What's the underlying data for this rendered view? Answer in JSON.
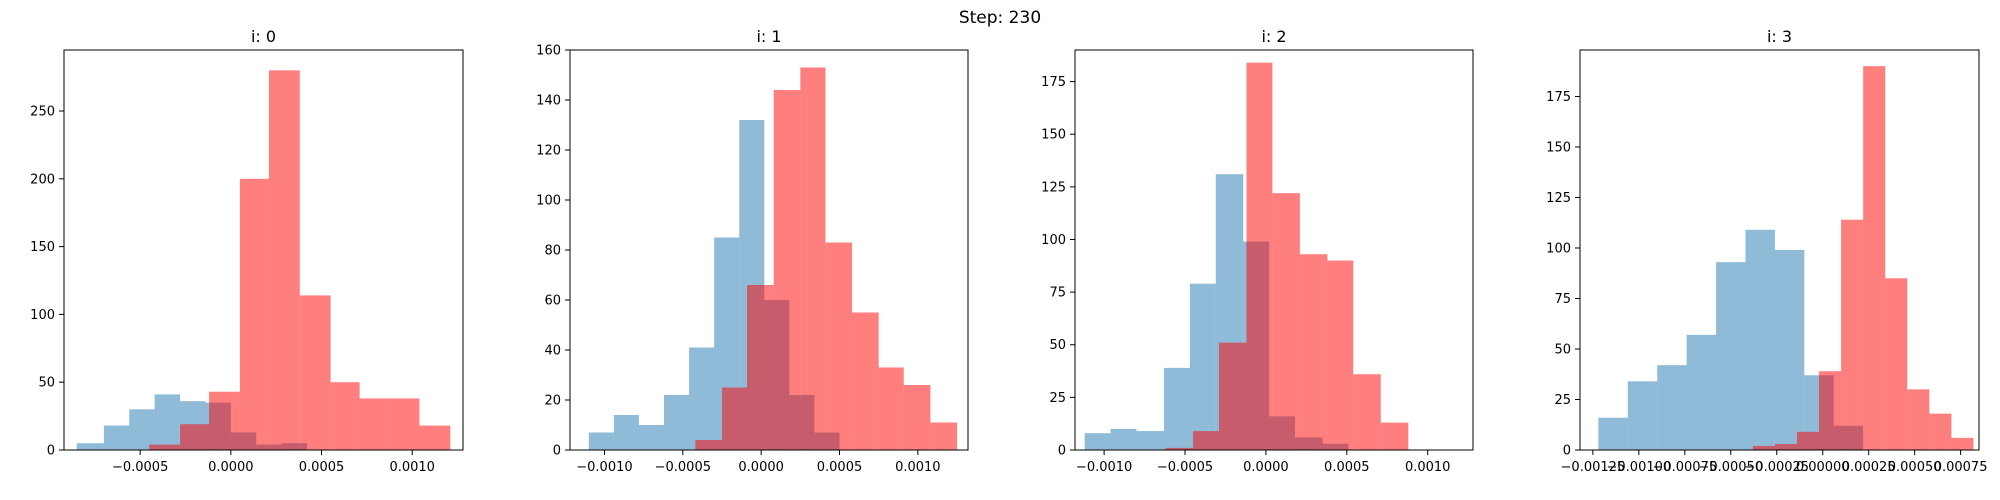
{
  "figure": {
    "suptitle": "Step: 230"
  },
  "chart_data": [
    {
      "type": "histogram",
      "title": "i: 0",
      "xlim": [
        -0.00092,
        0.00128
      ],
      "ylim": [
        0,
        295
      ],
      "xticks": [
        -0.0005,
        0.0,
        0.0005,
        0.001
      ],
      "xtick_labels": [
        "−0.0005",
        "0.0000",
        "0.0005",
        "0.0010"
      ],
      "yticks": [
        0,
        50,
        100,
        150,
        200,
        250
      ],
      "ytick_labels": [
        "0",
        "50",
        "100",
        "150",
        "200",
        "250"
      ],
      "series": [
        {
          "color": "#1f77b4",
          "alpha": 0.5,
          "bins": [
            [
              -0.00085,
              -0.0007,
              5
            ],
            [
              -0.0007,
              -0.00056,
              18
            ],
            [
              -0.00056,
              -0.00042,
              30
            ],
            [
              -0.00042,
              -0.00028,
              41
            ],
            [
              -0.00028,
              -0.00014,
              36
            ],
            [
              -0.00014,
              0.0,
              35
            ],
            [
              0.0,
              0.00014,
              13
            ],
            [
              0.00014,
              0.00028,
              4
            ],
            [
              0.00028,
              0.00042,
              5
            ]
          ]
        },
        {
          "color": "#ff0000",
          "alpha": 0.5,
          "bins": [
            [
              -0.00045,
              -0.00028,
              4
            ],
            [
              -0.00028,
              -0.00012,
              19
            ],
            [
              -0.00012,
              5e-05,
              43
            ],
            [
              5e-05,
              0.00021,
              200
            ],
            [
              0.00021,
              0.00038,
              280
            ],
            [
              0.00038,
              0.00055,
              114
            ],
            [
              0.00055,
              0.00071,
              50
            ],
            [
              0.00071,
              0.00088,
              38
            ],
            [
              0.00088,
              0.00104,
              38
            ],
            [
              0.00104,
              0.00121,
              18
            ]
          ]
        }
      ]
    },
    {
      "type": "histogram",
      "title": "i: 1",
      "xlim": [
        -0.00122,
        0.00132
      ],
      "ylim": [
        0,
        160
      ],
      "xticks": [
        -0.001,
        -0.0005,
        0.0,
        0.0005,
        0.001
      ],
      "xtick_labels": [
        "−0.0010",
        "−0.0005",
        "0.0000",
        "0.0005",
        "0.0010"
      ],
      "yticks": [
        0,
        20,
        40,
        60,
        80,
        100,
        120,
        140,
        160
      ],
      "ytick_labels": [
        "0",
        "20",
        "40",
        "60",
        "80",
        "100",
        "120",
        "140",
        "160"
      ],
      "series": [
        {
          "color": "#1f77b4",
          "alpha": 0.5,
          "bins": [
            [
              -0.0011,
              -0.00094,
              7
            ],
            [
              -0.00094,
              -0.00078,
              14
            ],
            [
              -0.00078,
              -0.00062,
              10
            ],
            [
              -0.00062,
              -0.00046,
              22
            ],
            [
              -0.00046,
              -0.0003,
              41
            ],
            [
              -0.0003,
              -0.00014,
              85
            ],
            [
              -0.00014,
              2e-05,
              132
            ],
            [
              2e-05,
              0.00018,
              60
            ],
            [
              0.00018,
              0.00034,
              22
            ],
            [
              0.00034,
              0.0005,
              7
            ]
          ]
        },
        {
          "color": "#ff0000",
          "alpha": 0.5,
          "bins": [
            [
              -0.00042,
              -0.00025,
              4
            ],
            [
              -0.00025,
              -9e-05,
              25
            ],
            [
              -9e-05,
              8e-05,
              66
            ],
            [
              8e-05,
              0.00025,
              144
            ],
            [
              0.00025,
              0.00041,
              153
            ],
            [
              0.00041,
              0.00058,
              83
            ],
            [
              0.00058,
              0.00075,
              55
            ],
            [
              0.00075,
              0.00091,
              33
            ],
            [
              0.00091,
              0.00108,
              26
            ],
            [
              0.00108,
              0.00125,
              11
            ]
          ]
        }
      ]
    },
    {
      "type": "histogram",
      "title": "i: 2",
      "xlim": [
        -0.00118,
        0.00128
      ],
      "ylim": [
        0,
        190
      ],
      "xticks": [
        -0.001,
        -0.0005,
        0.0,
        0.0005,
        0.001
      ],
      "xtick_labels": [
        "−0.0010",
        "−0.0005",
        "0.0000",
        "0.0005",
        "0.0010"
      ],
      "yticks": [
        0,
        25,
        50,
        75,
        100,
        125,
        150,
        175
      ],
      "ytick_labels": [
        "0",
        "25",
        "50",
        "75",
        "100",
        "125",
        "150",
        "175"
      ],
      "series": [
        {
          "color": "#1f77b4",
          "alpha": 0.5,
          "bins": [
            [
              -0.00112,
              -0.00096,
              8
            ],
            [
              -0.00096,
              -0.0008,
              10
            ],
            [
              -0.0008,
              -0.00063,
              9
            ],
            [
              -0.00063,
              -0.00047,
              39
            ],
            [
              -0.00047,
              -0.00031,
              79
            ],
            [
              -0.00031,
              -0.00014,
              131
            ],
            [
              -0.00014,
              2e-05,
              99
            ],
            [
              2e-05,
              0.00018,
              16
            ],
            [
              0.00018,
              0.00035,
              6
            ],
            [
              0.00035,
              0.00051,
              3
            ]
          ]
        },
        {
          "color": "#ff0000",
          "alpha": 0.5,
          "bins": [
            [
              -0.00062,
              -0.00045,
              1
            ],
            [
              -0.00045,
              -0.00029,
              9
            ],
            [
              -0.00029,
              -0.00012,
              51
            ],
            [
              -0.00012,
              4e-05,
              184
            ],
            [
              4e-05,
              0.00021,
              122
            ],
            [
              0.00021,
              0.00038,
              93
            ],
            [
              0.00038,
              0.00054,
              90
            ],
            [
              0.00054,
              0.00071,
              36
            ],
            [
              0.00071,
              0.00088,
              13
            ],
            [
              0.00088,
              0.00104,
              0
            ]
          ]
        }
      ]
    },
    {
      "type": "histogram",
      "title": "i: 3",
      "xlim": [
        -0.00132,
        0.00085
      ],
      "ylim": [
        0,
        198
      ],
      "xticks": [
        -0.00125,
        -0.001,
        -0.00075,
        -0.0005,
        -0.00025,
        0.0,
        0.00025,
        0.0005,
        0.00075
      ],
      "xtick_labels": [
        "−0.00125",
        "−0.00100",
        "−0.00075",
        "−0.00050",
        "−0.00025",
        "0.00000",
        "0.00025",
        "0.00050",
        "0.00075"
      ],
      "yticks": [
        0,
        25,
        50,
        75,
        100,
        125,
        150,
        175
      ],
      "ytick_labels": [
        "0",
        "25",
        "50",
        "75",
        "100",
        "125",
        "150",
        "175"
      ],
      "series": [
        {
          "color": "#1f77b4",
          "alpha": 0.5,
          "bins": [
            [
              -0.00122,
              -0.00106,
              16
            ],
            [
              -0.00106,
              -0.0009,
              34
            ],
            [
              -0.0009,
              -0.00074,
              42
            ],
            [
              -0.00074,
              -0.00058,
              57
            ],
            [
              -0.00058,
              -0.00042,
              93
            ],
            [
              -0.00042,
              -0.00026,
              109
            ],
            [
              -0.00026,
              -0.0001,
              99
            ],
            [
              -0.0001,
              6e-05,
              37
            ],
            [
              6e-05,
              0.00022,
              12
            ],
            [
              0.00022,
              0.00038,
              0
            ]
          ]
        },
        {
          "color": "#ff0000",
          "alpha": 0.5,
          "bins": [
            [
              -0.00038,
              -0.00026,
              2
            ],
            [
              -0.00026,
              -0.00014,
              3
            ],
            [
              -0.00014,
              -2e-05,
              9
            ],
            [
              -2e-05,
              0.0001,
              39
            ],
            [
              0.0001,
              0.00022,
              114
            ],
            [
              0.00022,
              0.00034,
              190
            ],
            [
              0.00034,
              0.00046,
              85
            ],
            [
              0.00046,
              0.00058,
              30
            ],
            [
              0.00058,
              0.0007,
              18
            ],
            [
              0.0007,
              0.00082,
              6
            ]
          ]
        }
      ]
    }
  ]
}
